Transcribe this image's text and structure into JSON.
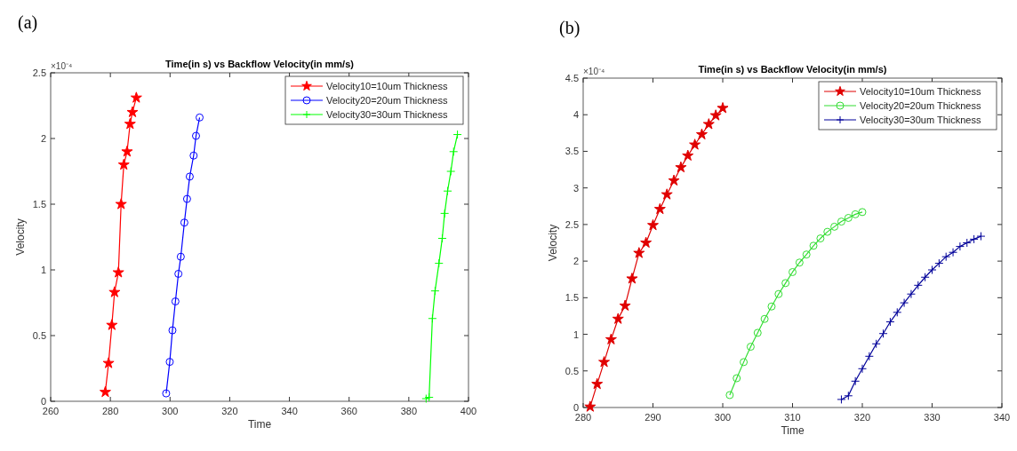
{
  "chart_data": [
    {
      "type": "line",
      "title": "Time(in s) vs Backflow Velocity(in mm/s)",
      "xlabel": "Time",
      "ylabel": "Velocity",
      "annotations": [
        "(a)",
        "×10⁻⁴"
      ],
      "xlim": [
        260,
        400
      ],
      "xticks": [
        260,
        280,
        300,
        320,
        340,
        360,
        380,
        400
      ],
      "ylim": [
        0,
        2.5
      ],
      "yticks": [
        0,
        0.5,
        1,
        1.5,
        2,
        2.5
      ],
      "legend": "top right",
      "grid": false,
      "series": [
        {
          "name": "Velocity10=10um Thickness",
          "color": "#ff0000",
          "marker": "star",
          "x": [
            278.3,
            279.4,
            280.5,
            281.4,
            282.7,
            283.6,
            284.5,
            285.6,
            286.6,
            287.4,
            288.7
          ],
          "values": [
            0.07,
            0.29,
            0.58,
            0.83,
            0.98,
            1.5,
            1.8,
            1.9,
            2.11,
            2.2,
            2.31
          ]
        },
        {
          "name": "Velocity20=20um Thickness",
          "color": "#0000ff",
          "marker": "circle",
          "x": [
            298.7,
            299.9,
            300.8,
            301.8,
            302.8,
            303.6,
            304.8,
            305.7,
            306.6,
            307.9,
            308.7,
            309.9
          ],
          "values": [
            0.06,
            0.3,
            0.54,
            0.76,
            0.97,
            1.1,
            1.36,
            1.54,
            1.71,
            1.87,
            2.02,
            2.16
          ]
        },
        {
          "name": "Velocity30=30um Thickness",
          "color": "#00ff00",
          "marker": "cross",
          "x": [
            385.8,
            386.8,
            387.9,
            388.8,
            390.1,
            391.2,
            392.0,
            393.0,
            394.1,
            395.0,
            396.3
          ],
          "values": [
            0.02,
            0.03,
            0.63,
            0.84,
            1.05,
            1.24,
            1.43,
            1.6,
            1.75,
            1.9,
            2.03
          ]
        }
      ]
    },
    {
      "type": "line",
      "title": "Time(in s) vs Backflow Velocity(in mm/s)",
      "xlabel": "Time",
      "ylabel": "Velocity",
      "annotations": [
        "(b)",
        "×10⁻⁴"
      ],
      "xlim": [
        280,
        340
      ],
      "xticks": [
        280,
        290,
        300,
        310,
        320,
        330,
        340
      ],
      "ylim": [
        0,
        4.5
      ],
      "yticks": [
        0,
        0.5,
        1,
        1.5,
        2,
        2.5,
        3,
        3.5,
        4,
        4.5
      ],
      "legend": "top right",
      "grid": false,
      "series": [
        {
          "name": "Velocity10=10um Thickness",
          "color": "#e00000",
          "marker": "star",
          "x": [
            281,
            282,
            283,
            284,
            285,
            286,
            287,
            288,
            289,
            290,
            291,
            292,
            293,
            294,
            295,
            296,
            297,
            298,
            299,
            300
          ],
          "values": [
            0.01,
            0.32,
            0.62,
            0.93,
            1.21,
            1.39,
            1.76,
            2.11,
            2.25,
            2.49,
            2.71,
            2.91,
            3.1,
            3.28,
            3.44,
            3.59,
            3.73,
            3.87,
            3.99,
            4.09
          ]
        },
        {
          "name": "Velocity20=20um Thickness",
          "color": "#33dd33",
          "marker": "circle",
          "x": [
            301,
            302,
            303,
            304,
            305,
            306,
            307,
            308,
            309,
            310,
            311,
            312,
            313,
            314,
            315,
            316,
            317,
            318,
            319,
            320
          ],
          "values": [
            0.17,
            0.4,
            0.62,
            0.83,
            1.02,
            1.21,
            1.38,
            1.55,
            1.7,
            1.85,
            1.98,
            2.09,
            2.21,
            2.31,
            2.4,
            2.47,
            2.54,
            2.59,
            2.64,
            2.67
          ]
        },
        {
          "name": "Velocity30=30um Thickness",
          "color": "#000099",
          "marker": "cross",
          "x": [
            317,
            318,
            319,
            320,
            321,
            322,
            323,
            324,
            325,
            326,
            327,
            328,
            329,
            330,
            331,
            332,
            333,
            334,
            335,
            336,
            337
          ],
          "values": [
            0.11,
            0.16,
            0.36,
            0.53,
            0.7,
            0.87,
            1.01,
            1.17,
            1.3,
            1.43,
            1.55,
            1.67,
            1.78,
            1.88,
            1.97,
            2.06,
            2.12,
            2.2,
            2.25,
            2.3,
            2.34
          ]
        }
      ]
    }
  ]
}
